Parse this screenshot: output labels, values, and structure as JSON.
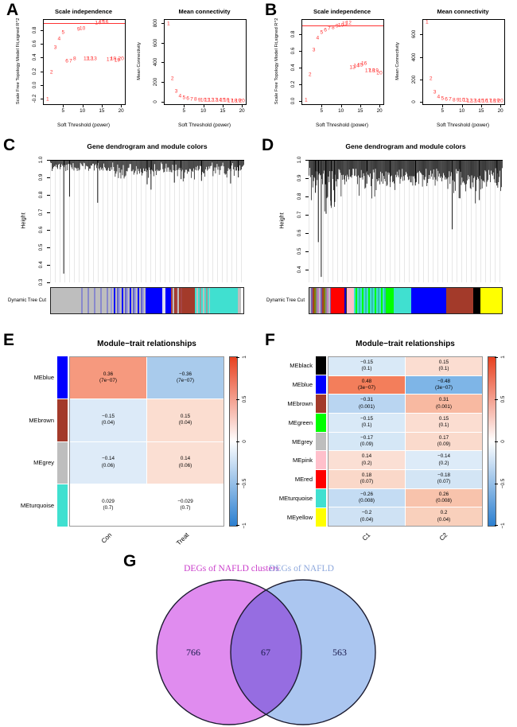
{
  "panel_letters": {
    "A": "A",
    "B": "B",
    "C": "C",
    "D": "D",
    "E": "E",
    "F": "F",
    "G": "G"
  },
  "chart_data": [
    {
      "id": "A-scale-independence",
      "type": "scatter",
      "panel": "A",
      "title": "Scale independence",
      "xlabel": "Soft Threshold (power)",
      "ylabel": "Scale Free Topology Model Fit,signed R^2",
      "xlim": [
        0,
        21
      ],
      "ylim": [
        -0.28,
        0.95
      ],
      "xticks": [
        5,
        10,
        15,
        20
      ],
      "yticks": [
        -0.2,
        0,
        0.2,
        0.4,
        0.6,
        0.8
      ],
      "ytick_labels": [
        "-0.2",
        "0.0",
        "0.2",
        "0.4",
        "0.6",
        "0.8"
      ],
      "hline": 0.9,
      "hline_color": "#ff3333",
      "point_color": "#ff3333",
      "x": [
        1,
        2,
        3,
        4,
        5,
        6,
        7,
        8,
        9,
        10,
        11,
        12,
        13,
        14,
        15,
        16,
        17,
        18,
        19,
        20
      ],
      "y": [
        -0.22,
        0.17,
        0.53,
        0.66,
        0.75,
        0.33,
        0.34,
        0.37,
        0.8,
        0.81,
        0.37,
        0.375,
        0.37,
        0.895,
        0.9,
        0.9,
        0.36,
        0.365,
        0.345,
        0.37
      ],
      "point_labels": [
        "1",
        "2",
        "3",
        "4",
        "5",
        "6",
        "7",
        "8",
        "9",
        "10",
        "11",
        "12",
        "13",
        "14",
        "15",
        "16",
        "17",
        "18",
        "19",
        "20"
      ]
    },
    {
      "id": "A-mean-connectivity",
      "type": "scatter",
      "panel": "A",
      "title": "Mean connectivity",
      "xlabel": "Soft Threshold (power)",
      "ylabel": "Mean Connectivity",
      "xlim": [
        0,
        21
      ],
      "ylim": [
        -25,
        830
      ],
      "xticks": [
        5,
        10,
        15,
        20
      ],
      "yticks": [
        0,
        200,
        400,
        600,
        800
      ],
      "ytick_labels": [
        "0",
        "200",
        "400",
        "600",
        "800"
      ],
      "hline": null,
      "point_color": "#ff3333",
      "x": [
        1,
        2,
        3,
        4,
        5,
        6,
        7,
        8,
        9,
        10,
        11,
        12,
        13,
        14,
        15,
        16,
        17,
        18,
        19,
        20
      ],
      "y": [
        780,
        228,
        95,
        45,
        28,
        20,
        15,
        12,
        10,
        8,
        7,
        6,
        5,
        5,
        4,
        4,
        3,
        3,
        3,
        3
      ],
      "point_labels": [
        "1",
        "2",
        "3",
        "4",
        "5",
        "6",
        "7",
        "8",
        "9",
        "10",
        "11",
        "12",
        "13",
        "14",
        "15",
        "16",
        "17",
        "18",
        "19",
        "20"
      ]
    },
    {
      "id": "B-scale-independence",
      "type": "scatter",
      "panel": "B",
      "title": "Scale independence",
      "xlabel": "Soft Threshold (power)",
      "ylabel": "Scale Free Topology Model Fit,signed R^2",
      "xlim": [
        0,
        21
      ],
      "ylim": [
        -0.04,
        0.97
      ],
      "xticks": [
        5,
        10,
        15,
        20
      ],
      "yticks": [
        0,
        0.2,
        0.4,
        0.6,
        0.8
      ],
      "ytick_labels": [
        "0.0",
        "0.2",
        "0.4",
        "0.6",
        "0.8"
      ],
      "hline": 0.9,
      "hline_color": "#ff3333",
      "point_color": "#ff3333",
      "x": [
        1,
        2,
        3,
        4,
        5,
        6,
        7,
        8,
        9,
        10,
        11,
        12,
        13,
        14,
        15,
        16,
        17,
        18,
        19,
        20
      ],
      "y": [
        0.0,
        0.3,
        0.6,
        0.745,
        0.81,
        0.835,
        0.855,
        0.87,
        0.885,
        0.895,
        0.915,
        0.92,
        0.385,
        0.41,
        0.42,
        0.44,
        0.35,
        0.355,
        0.35,
        0.325
      ],
      "point_labels": [
        "1",
        "2",
        "3",
        "4",
        "5",
        "6",
        "7",
        "8",
        "9",
        "10",
        "11",
        "12",
        "13",
        "14",
        "15",
        "16",
        "17",
        "18",
        "19",
        "20"
      ]
    },
    {
      "id": "B-mean-connectivity",
      "type": "scatter",
      "panel": "B",
      "title": "Mean connectivity",
      "xlabel": "Soft Threshold (power)",
      "ylabel": "Mean Connectivity",
      "xlim": [
        0,
        21
      ],
      "ylim": [
        -20,
        730
      ],
      "xticks": [
        5,
        10,
        15,
        20
      ],
      "yticks": [
        0,
        200,
        400,
        600
      ],
      "ytick_labels": [
        "0",
        "200",
        "400",
        "600"
      ],
      "hline": null,
      "point_color": "#ff3333",
      "x": [
        1,
        2,
        3,
        4,
        5,
        6,
        7,
        8,
        9,
        10,
        11,
        12,
        13,
        14,
        15,
        16,
        17,
        18,
        19,
        20
      ],
      "y": [
        700,
        200,
        80,
        38,
        24,
        17,
        13,
        10,
        8,
        7,
        6,
        5,
        4,
        4,
        3,
        3,
        3,
        2,
        2,
        2
      ],
      "point_labels": [
        "1",
        "2",
        "3",
        "4",
        "5",
        "6",
        "7",
        "8",
        "9",
        "10",
        "11",
        "12",
        "13",
        "14",
        "15",
        "16",
        "17",
        "18",
        "19",
        "20"
      ]
    },
    {
      "id": "C-dendrogram",
      "type": "dendrogram",
      "panel": "C",
      "title": "Gene dendrogram and module colors",
      "ylabel": "Height",
      "bar_label": "Dynamic Tree Cut",
      "ylim": [
        0.3,
        1.0
      ],
      "yticks": [
        1.0,
        0.9,
        0.8,
        0.7,
        0.6,
        0.5,
        0.4,
        0.3
      ],
      "ytick_labels": [
        "1.0",
        "0.9",
        "0.8",
        "0.7",
        "0.6",
        "0.5",
        "0.4",
        "0.3"
      ],
      "seed": 7,
      "n": 240,
      "depth_min": 0.015,
      "depth_rand": 0.05,
      "regions": [
        [
          0.33,
          0.47,
          0.08
        ],
        [
          0.47,
          0.56,
          0.06
        ],
        [
          0.58,
          0.66,
          0.07
        ],
        [
          0.66,
          0.75,
          0.1
        ],
        [
          0.75,
          0.95,
          0.06
        ]
      ],
      "spikes": [
        [
          0.07,
          0.35
        ],
        [
          0.1,
          0.79
        ],
        [
          0.245,
          0.755
        ],
        [
          0.5,
          0.86
        ],
        [
          0.52,
          0.83
        ],
        [
          0.64,
          0.87
        ],
        [
          0.675,
          0.89
        ],
        [
          0.78,
          0.88
        ],
        [
          0.93,
          0.865
        ],
        [
          0.97,
          0.9
        ]
      ],
      "bar_segments": [
        {
          "w": 0.14,
          "colors": [
            "#bebebe"
          ]
        },
        {
          "w": 0.17,
          "colors": [
            "#bebebe",
            "#bebebe",
            "#8888cc",
            "#bebebe"
          ]
        },
        {
          "w": 0.19,
          "colors": [
            "#9999dd",
            "#bebebe",
            "#0000ff",
            "#bebebe",
            "#6666cc"
          ]
        },
        {
          "w": 0.08,
          "colors": [
            "#0000ff"
          ]
        },
        {
          "w": 0.015,
          "colors": [
            "#ddddee"
          ]
        },
        {
          "w": 0.03,
          "colors": [
            "#0000ff"
          ]
        },
        {
          "w": 0.055,
          "colors": [
            "#a54444",
            "#bebebe",
            "#a33a2a"
          ]
        },
        {
          "w": 0.07,
          "colors": [
            "#a33a2a"
          ]
        },
        {
          "w": 0.075,
          "colors": [
            "#40e0d0",
            "#bebebe",
            "#40e0d0",
            "#999999"
          ]
        },
        {
          "w": 0.145,
          "colors": [
            "#40e0d0"
          ]
        },
        {
          "w": 0.02,
          "colors": [
            "#bebebe"
          ]
        }
      ]
    },
    {
      "id": "D-dendrogram",
      "type": "dendrogram",
      "panel": "D",
      "title": "Gene dendrogram and module colors",
      "ylabel": "Height",
      "bar_label": "Dynamic Tree Cut",
      "ylim": [
        0.33,
        1.0
      ],
      "yticks": [
        1.0,
        0.9,
        0.8,
        0.7,
        0.6,
        0.5,
        0.4
      ],
      "ytick_labels": [
        "1.0",
        "0.9",
        "0.8",
        "0.7",
        "0.6",
        "0.5",
        "0.4"
      ],
      "seed": 13,
      "n": 260,
      "depth_min": 0.04,
      "depth_rand": 0.07,
      "regions": [
        [
          0.0,
          0.14,
          0.24
        ],
        [
          0.14,
          0.2,
          0.1
        ],
        [
          0.25,
          0.45,
          0.12
        ],
        [
          0.45,
          0.55,
          0.08
        ],
        [
          0.55,
          0.72,
          0.09
        ],
        [
          0.72,
          0.88,
          0.16
        ],
        [
          0.88,
          1.0,
          0.1
        ]
      ],
      "spikes": [
        [
          0.035,
          0.82
        ],
        [
          0.05,
          0.55
        ],
        [
          0.065,
          0.36
        ],
        [
          0.09,
          0.705
        ],
        [
          0.115,
          0.75
        ],
        [
          0.135,
          0.77
        ],
        [
          0.3,
          0.87
        ],
        [
          0.42,
          0.88
        ],
        [
          0.55,
          0.86
        ],
        [
          0.74,
          0.62
        ],
        [
          0.78,
          0.79
        ],
        [
          0.88,
          0.78
        ],
        [
          0.97,
          0.86
        ]
      ],
      "bar_segments": [
        {
          "w": 0.11,
          "colors": [
            "#bebebe",
            "#7a5ca8",
            "#a33a2a",
            "#808000",
            "#888888",
            "#c080c0"
          ]
        },
        {
          "w": 0.07,
          "colors": [
            "#ff0000"
          ]
        },
        {
          "w": 0.015,
          "colors": [
            "#0000cc",
            "#333333"
          ]
        },
        {
          "w": 0.035,
          "colors": [
            "#ffc0cb"
          ]
        },
        {
          "w": 0.165,
          "colors": [
            "#40e0d0",
            "#00ff00",
            "#40e0d0",
            "#2fbfaf"
          ]
        },
        {
          "w": 0.045,
          "colors": [
            "#00ff00"
          ]
        },
        {
          "w": 0.09,
          "colors": [
            "#40e0d0"
          ]
        },
        {
          "w": 0.18,
          "colors": [
            "#0000ff"
          ]
        },
        {
          "w": 0.14,
          "colors": [
            "#a33a2a"
          ]
        },
        {
          "w": 0.04,
          "colors": [
            "#000000"
          ]
        },
        {
          "w": 0.11,
          "colors": [
            "#ffff00"
          ]
        }
      ]
    },
    {
      "id": "E-module-trait",
      "type": "heatmap",
      "panel": "E",
      "title": "Module−trait relationships",
      "columns": [
        "Con",
        "Treat"
      ],
      "rows": [
        {
          "name": "MEblue",
          "color": "#0000ff",
          "cells": [
            {
              "v": "0.36",
              "p": "(7e−07)",
              "bg": "#f6997e"
            },
            {
              "v": "−0.36",
              "p": "(7e−07)",
              "bg": "#a9cbec"
            }
          ]
        },
        {
          "name": "MEbrown",
          "color": "#a33a2a",
          "cells": [
            {
              "v": "−0.15",
              "p": "(0.04)",
              "bg": "#dceaf8"
            },
            {
              "v": "0.15",
              "p": "(0.04)",
              "bg": "#fbddd0"
            }
          ]
        },
        {
          "name": "MEgrey",
          "color": "#bebebe",
          "cells": [
            {
              "v": "−0.14",
              "p": "(0.06)",
              "bg": "#deebf8"
            },
            {
              "v": "0.14",
              "p": "(0.06)",
              "bg": "#fbdfd3"
            }
          ]
        },
        {
          "name": "MEturquoise",
          "color": "#40e0d0",
          "cells": [
            {
              "v": "0.029",
              "p": "(0.7)",
              "bg": "#ffffff"
            },
            {
              "v": "−0.029",
              "p": "(0.7)",
              "bg": "#ffffff"
            }
          ]
        }
      ],
      "colorbar": {
        "ticks": [
          "1",
          "0.5",
          "0",
          "−0.5",
          "−1"
        ],
        "colors": [
          "#e8401f",
          "#ffffff",
          "#2b7fd0"
        ]
      }
    },
    {
      "id": "F-module-trait",
      "type": "heatmap",
      "panel": "F",
      "title": "Module−trait relationships",
      "columns": [
        "C1",
        "C2"
      ],
      "rows": [
        {
          "name": "MEblack",
          "color": "#000000",
          "cells": [
            {
              "v": "−0.15",
              "p": "(0.1)",
              "bg": "#d9e9f7"
            },
            {
              "v": "0.15",
              "p": "(0.1)",
              "bg": "#fbddd1"
            }
          ]
        },
        {
          "name": "MEblue",
          "color": "#0000ff",
          "cells": [
            {
              "v": "0.48",
              "p": "(3e−07)",
              "bg": "#f37e5b"
            },
            {
              "v": "−0.48",
              "p": "(3e−07)",
              "bg": "#7eb5e7"
            }
          ]
        },
        {
          "name": "MEbrown",
          "color": "#a33a2a",
          "cells": [
            {
              "v": "−0.31",
              "p": "(0.001)",
              "bg": "#b9d5f1"
            },
            {
              "v": "0.31",
              "p": "(0.001)",
              "bg": "#f8b9a1"
            }
          ]
        },
        {
          "name": "MEgreen",
          "color": "#00ff00",
          "cells": [
            {
              "v": "−0.15",
              "p": "(0.1)",
              "bg": "#d9e9f7"
            },
            {
              "v": "0.15",
              "p": "(0.1)",
              "bg": "#fbddd1"
            }
          ]
        },
        {
          "name": "MEgrey",
          "color": "#bebebe",
          "cells": [
            {
              "v": "−0.17",
              "p": "(0.09)",
              "bg": "#d5e7f6"
            },
            {
              "v": "0.17",
              "p": "(0.09)",
              "bg": "#fadacc"
            }
          ]
        },
        {
          "name": "MEpink",
          "color": "#ffc0cb",
          "cells": [
            {
              "v": "0.14",
              "p": "(0.2)",
              "bg": "#fbdfd4"
            },
            {
              "v": "−0.14",
              "p": "(0.2)",
              "bg": "#ddebf8"
            }
          ]
        },
        {
          "name": "MEred",
          "color": "#ff0000",
          "cells": [
            {
              "v": "0.18",
              "p": "(0.07)",
              "bg": "#fad8c9"
            },
            {
              "v": "−0.18",
              "p": "(0.07)",
              "bg": "#d3e5f5"
            }
          ]
        },
        {
          "name": "MEturquoise",
          "color": "#40e0d0",
          "cells": [
            {
              "v": "−0.26",
              "p": "(0.008)",
              "bg": "#c4dcf3"
            },
            {
              "v": "0.26",
              "p": "(0.008)",
              "bg": "#f8c3ac"
            }
          ]
        },
        {
          "name": "MEyellow",
          "color": "#ffff00",
          "cells": [
            {
              "v": "−0.2",
              "p": "(0.04)",
              "bg": "#cfe2f4"
            },
            {
              "v": "0.2",
              "p": "(0.04)",
              "bg": "#f9d0bc"
            }
          ]
        }
      ],
      "colorbar": {
        "ticks": [
          "1",
          "0.5",
          "0",
          "−0.5",
          "−1"
        ],
        "colors": [
          "#e8401f",
          "#ffffff",
          "#2b7fd0"
        ]
      }
    },
    {
      "id": "G-venn",
      "type": "venn",
      "panel": "G",
      "sets": [
        {
          "label": "DEGs of NAFLD clusters",
          "count": "766",
          "fill": "#e08cef",
          "label_color": "#ca3fcb"
        },
        {
          "label": "DEGs of NAFLD",
          "count": "563",
          "fill": "#abc6f0",
          "label_color": "#8fa9dd"
        }
      ],
      "intersection": "67",
      "number_color": "#1a1a4d",
      "outline_color": "#1b1b30"
    }
  ]
}
